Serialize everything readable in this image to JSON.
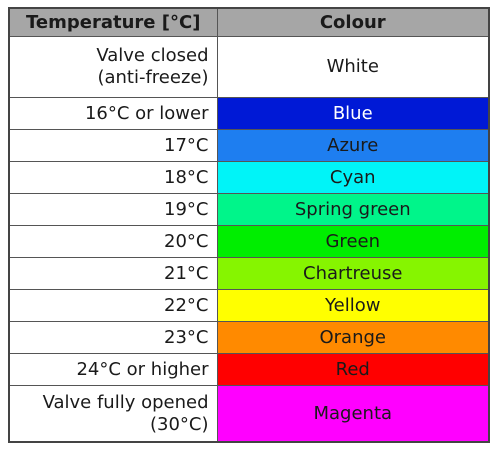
{
  "table": {
    "header": [
      "Temperature [°C]",
      "Colour"
    ],
    "rows": [
      {
        "temperature": "Valve closed\n(anti-freeze)",
        "colour": "White",
        "color": "#ffffff"
      },
      {
        "temperature": "16°C or lower",
        "colour": "Blue",
        "color": "#0019d6"
      },
      {
        "temperature": "17°C",
        "colour": "Azure",
        "color": "#1e7ef0"
      },
      {
        "temperature": "18°C",
        "colour": "Cyan",
        "color": "#00f4f8"
      },
      {
        "temperature": "19°C",
        "colour": "Spring green",
        "color": "#00f58a"
      },
      {
        "temperature": "20°C",
        "colour": "Green",
        "color": "#00ee00"
      },
      {
        "temperature": "21°C",
        "colour": "Chartreuse",
        "color": "#86f500"
      },
      {
        "temperature": "22°C",
        "colour": "Yellow",
        "color": "#ffff00"
      },
      {
        "temperature": "23°C",
        "colour": "Orange",
        "color": "#ff8a00"
      },
      {
        "temperature": "24°C or higher",
        "colour": "Red",
        "color": "#ff0000"
      },
      {
        "temperature": "Valve fully opened\n(30°C)",
        "colour": "Magenta",
        "color": "#ff00ff"
      }
    ]
  }
}
